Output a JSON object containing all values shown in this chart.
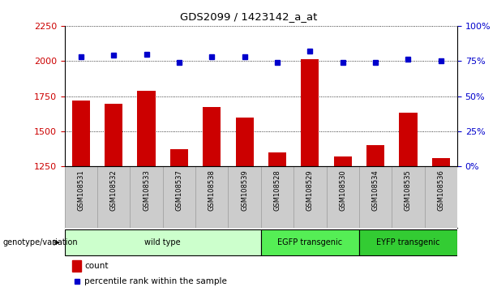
{
  "title": "GDS2099 / 1423142_a_at",
  "samples": [
    "GSM108531",
    "GSM108532",
    "GSM108533",
    "GSM108537",
    "GSM108538",
    "GSM108539",
    "GSM108528",
    "GSM108529",
    "GSM108530",
    "GSM108534",
    "GSM108535",
    "GSM108536"
  ],
  "counts": [
    1720,
    1695,
    1790,
    1375,
    1670,
    1600,
    1350,
    2010,
    1320,
    1400,
    1630,
    1310
  ],
  "percentiles": [
    78,
    79,
    80,
    74,
    78,
    78,
    74,
    82,
    74,
    74,
    76,
    75
  ],
  "bar_color": "#cc0000",
  "dot_color": "#0000cc",
  "ylim_left": [
    1250,
    2250
  ],
  "ylim_right": [
    0,
    100
  ],
  "yticks_left": [
    1250,
    1500,
    1750,
    2000,
    2250
  ],
  "yticks_right": [
    0,
    25,
    50,
    75,
    100
  ],
  "groups": [
    {
      "label": "wild type",
      "start": 0,
      "end": 6,
      "color": "#ccffcc"
    },
    {
      "label": "EGFP transgenic",
      "start": 6,
      "end": 9,
      "color": "#55ee55"
    },
    {
      "label": "EYFP transgenic",
      "start": 9,
      "end": 12,
      "color": "#33cc33"
    }
  ],
  "group_label": "genotype/variation",
  "legend_count_label": "count",
  "legend_percentile_label": "percentile rank within the sample",
  "dotted_line_color": "#000000",
  "tick_label_color_left": "#cc0000",
  "tick_label_color_right": "#0000cc",
  "background_xticklabels": "#cccccc"
}
